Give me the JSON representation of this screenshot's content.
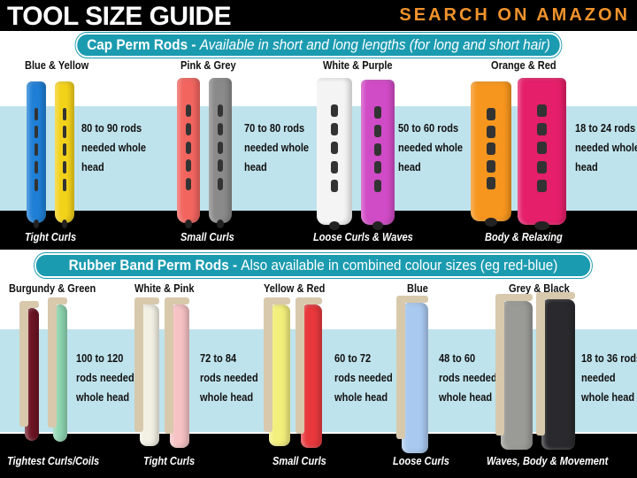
{
  "header": {
    "title": "TOOL SIZE GUIDE",
    "cta": "SEARCH ON AMAZON"
  },
  "cap": {
    "heading": "Cap Perm Rods",
    "separator": " - ",
    "subheading": "Available in short and long lengths (for long and short hair)",
    "items": [
      {
        "name": "Blue & Yellow",
        "info": "80 to 90 rods\nneeded whole\nhead",
        "curl": "Tight Curls",
        "colors": [
          "#1f7fd6",
          "#f3d21a"
        ]
      },
      {
        "name": "Pink & Grey",
        "info": "70 to 80 rods\nneeded whole\nhead",
        "curl": "Small Curls",
        "colors": [
          "#f2655f",
          "#8a8a8a"
        ]
      },
      {
        "name": "White & Purple",
        "info": "50 to 60 rods\nneeded whole\nhead",
        "curl": "Loose Curls & Waves",
        "colors": [
          "#f4f4f4",
          "#d04bc6"
        ]
      },
      {
        "name": "Orange & Red",
        "info": "18 to 24 rods\nneeded whole\nhead",
        "curl": "Body & Relaxing",
        "colors": [
          "#f7961e",
          "#e51f6a"
        ]
      }
    ]
  },
  "rubber": {
    "heading": "Rubber Band Perm Rods",
    "separator": " - ",
    "subheading": "Also available in combined colour sizes (eg red-blue)",
    "items": [
      {
        "name": "Burgundy & Green",
        "info": "100 to 120\nrods needed\nwhole head",
        "curl": "Tightest Curls/Coils",
        "colors": [
          "#6e1524",
          "#8fd6b2"
        ]
      },
      {
        "name": "White & Pink",
        "info": "72 to 84\nrods needed\nwhole head",
        "curl": "Tight Curls",
        "colors": [
          "#f3f1e4",
          "#f6c2c4"
        ]
      },
      {
        "name": "Yellow & Red",
        "info": "60 to 72\nrods needed\nwhole head",
        "curl": "Small Curls",
        "colors": [
          "#f3ef7c",
          "#e8383c"
        ]
      },
      {
        "name": "Blue",
        "info": "48 to 60\nrods needed\nwhole head",
        "curl": "Loose Curls",
        "colors": [
          "#a9c9f0"
        ]
      },
      {
        "name": "Grey & Black",
        "info": "18 to 36 rods\nneeded\nwhole head",
        "curl": "Waves, Body & Movement",
        "colors": [
          "#9a9a96",
          "#2a2a2e"
        ]
      }
    ]
  }
}
